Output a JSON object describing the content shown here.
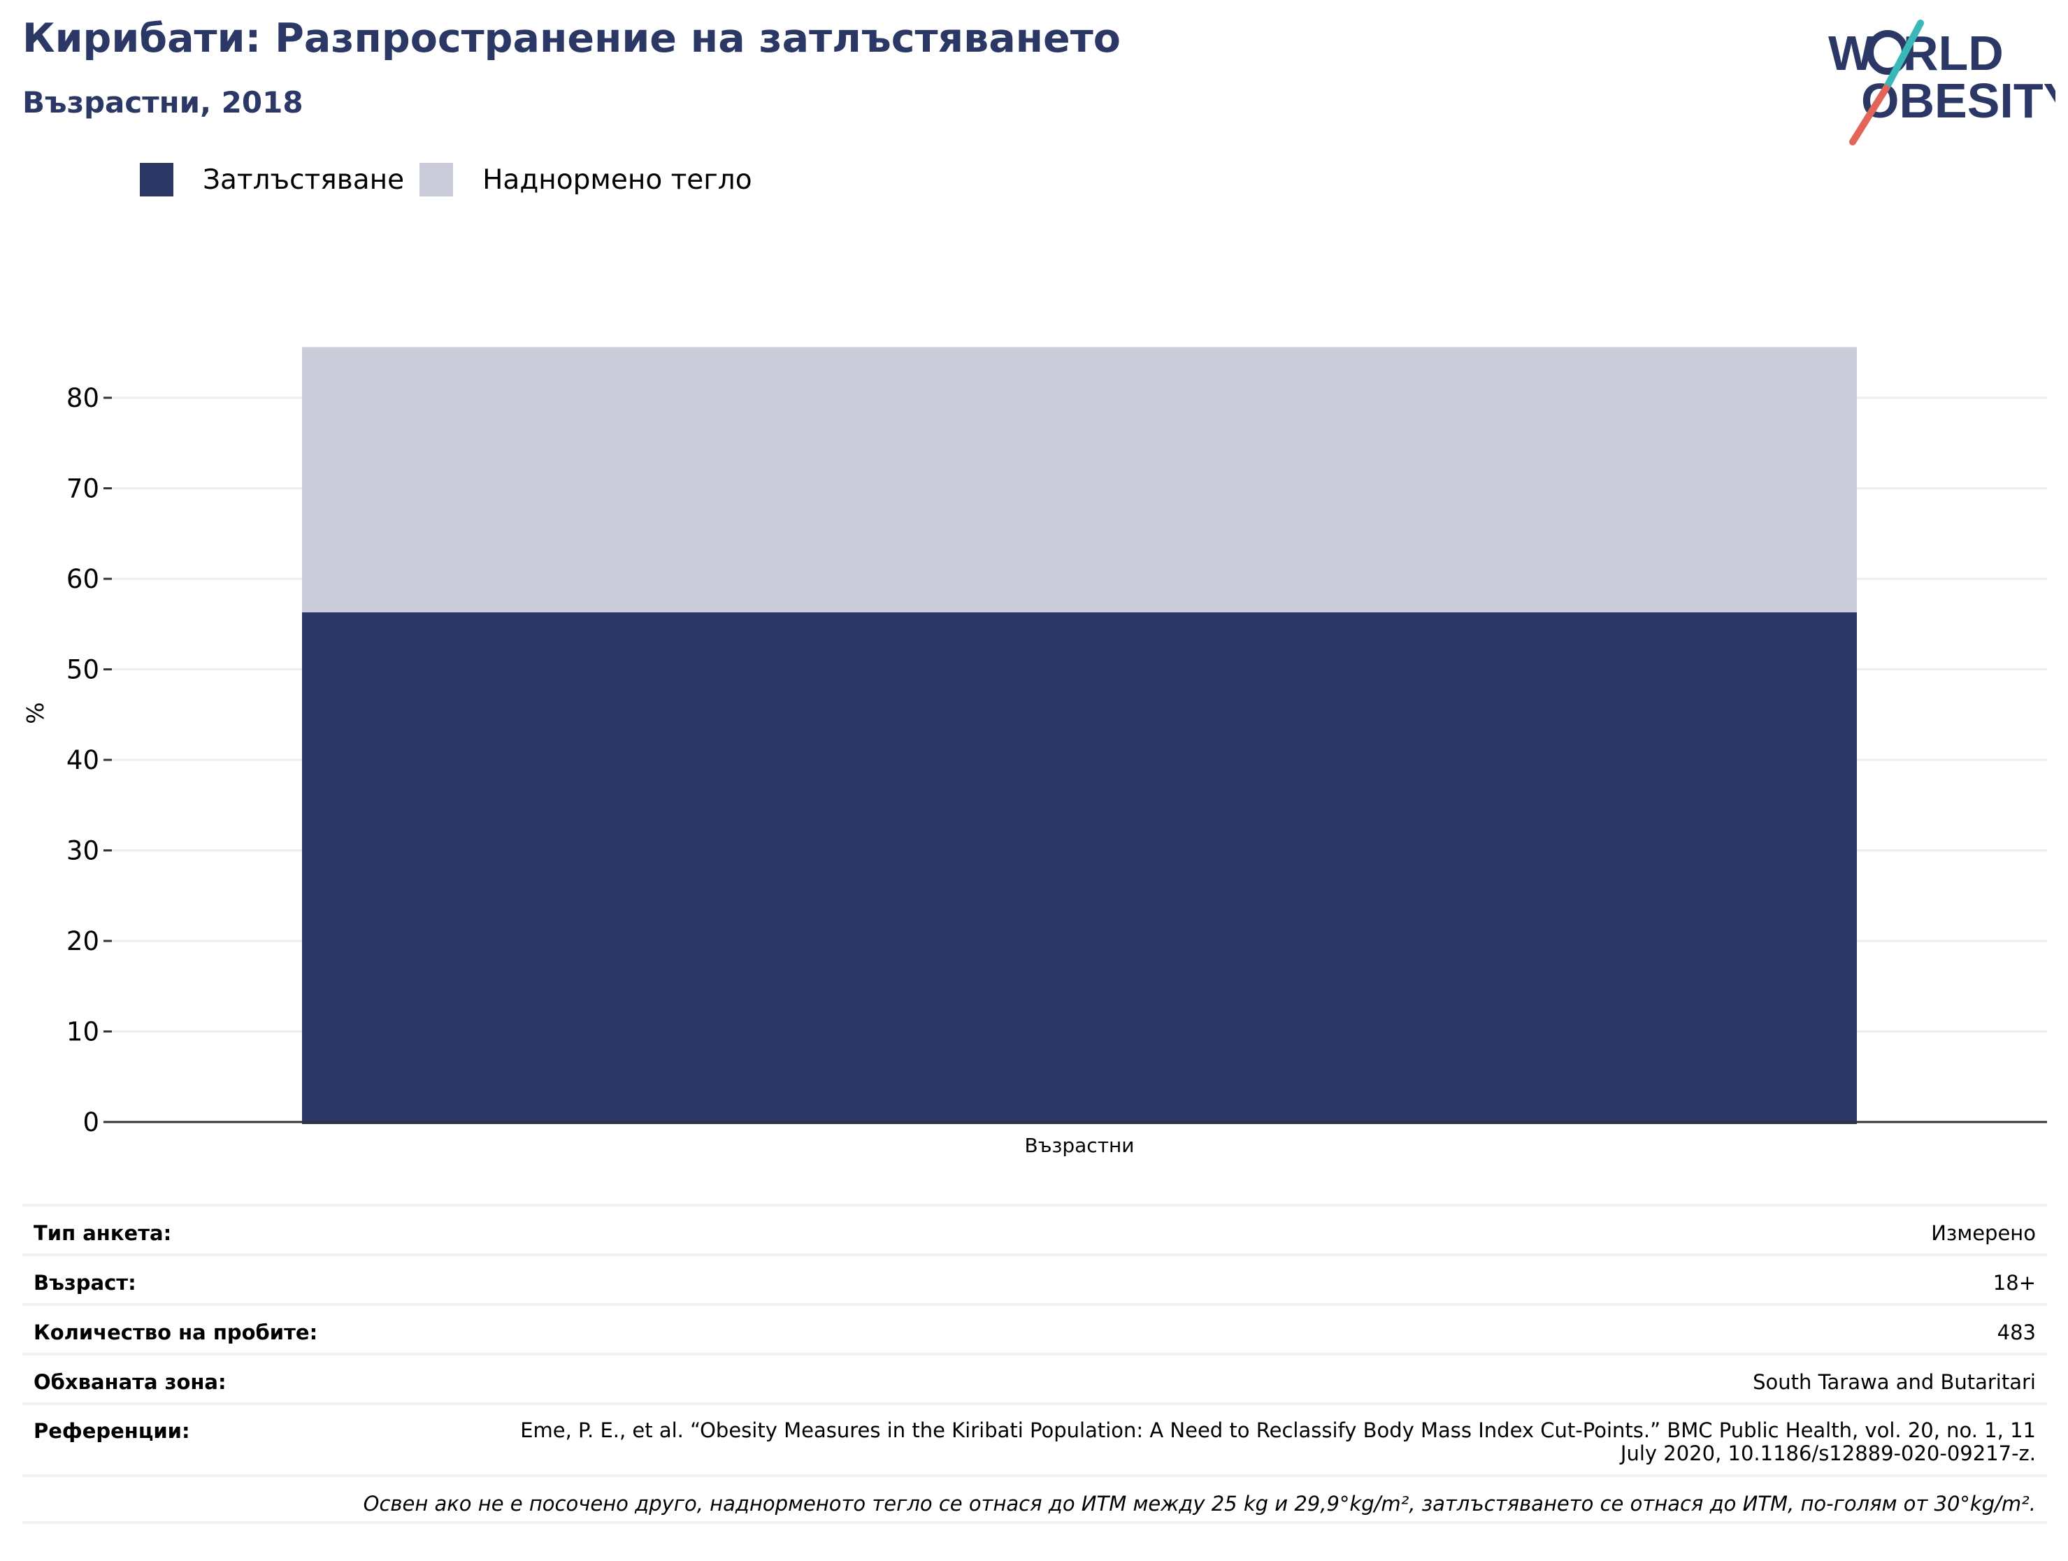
{
  "header": {
    "title": "Кирибати: Разпространение на затлъстяването",
    "subtitle": "Възрастни, 2018"
  },
  "logo": {
    "line1": "WORLD",
    "line2": "OBESITY",
    "colors": {
      "text": "#2b3764",
      "slash_teal": "#3ab8b9",
      "slash_red": "#e2655a"
    }
  },
  "colors": {
    "obesity": "#2b3764",
    "overweight": "#cacdd9",
    "grid": "#eeeeee",
    "axis": "#333333"
  },
  "chart_data": {
    "type": "bar",
    "stacked": true,
    "categories": [
      "Възрастни"
    ],
    "series": [
      {
        "name": "Затлъстяване",
        "values": [
          56.3
        ]
      },
      {
        "name": "Наднормено тегло",
        "values": [
          29.3
        ]
      }
    ],
    "ylabel": "%",
    "xlabel": "",
    "ylim": [
      0,
      90
    ],
    "yticks": [
      0,
      10,
      20,
      30,
      40,
      50,
      60,
      70,
      80
    ],
    "grid": true,
    "legend_position": "top-left"
  },
  "info": {
    "rows": [
      {
        "key": "Тип анкета:",
        "value": "Измерено"
      },
      {
        "key": "Възраст:",
        "value": "18+"
      },
      {
        "key": "Количество на пробите:",
        "value": "483"
      },
      {
        "key": "Обхваната зона:",
        "value": "South Tarawa and Butaritari"
      }
    ],
    "reference_key": "Референции:",
    "reference_value": "Eme, P. E., et al. “Obesity Measures in the Kiribati Population: A Need to Reclassify Body Mass Index Cut-Points.” BMC Public Health, vol. 20, no. 1, 11 July 2020, 10.1186/s12889-020-09217-z.",
    "note": "Освен ако не е посочено друго, наднорменото тегло се отнася до ИТМ между 25 kg и 29,9°kg/m², затлъстяването се отнася до ИТМ, по-голям от 30°kg/m²."
  }
}
